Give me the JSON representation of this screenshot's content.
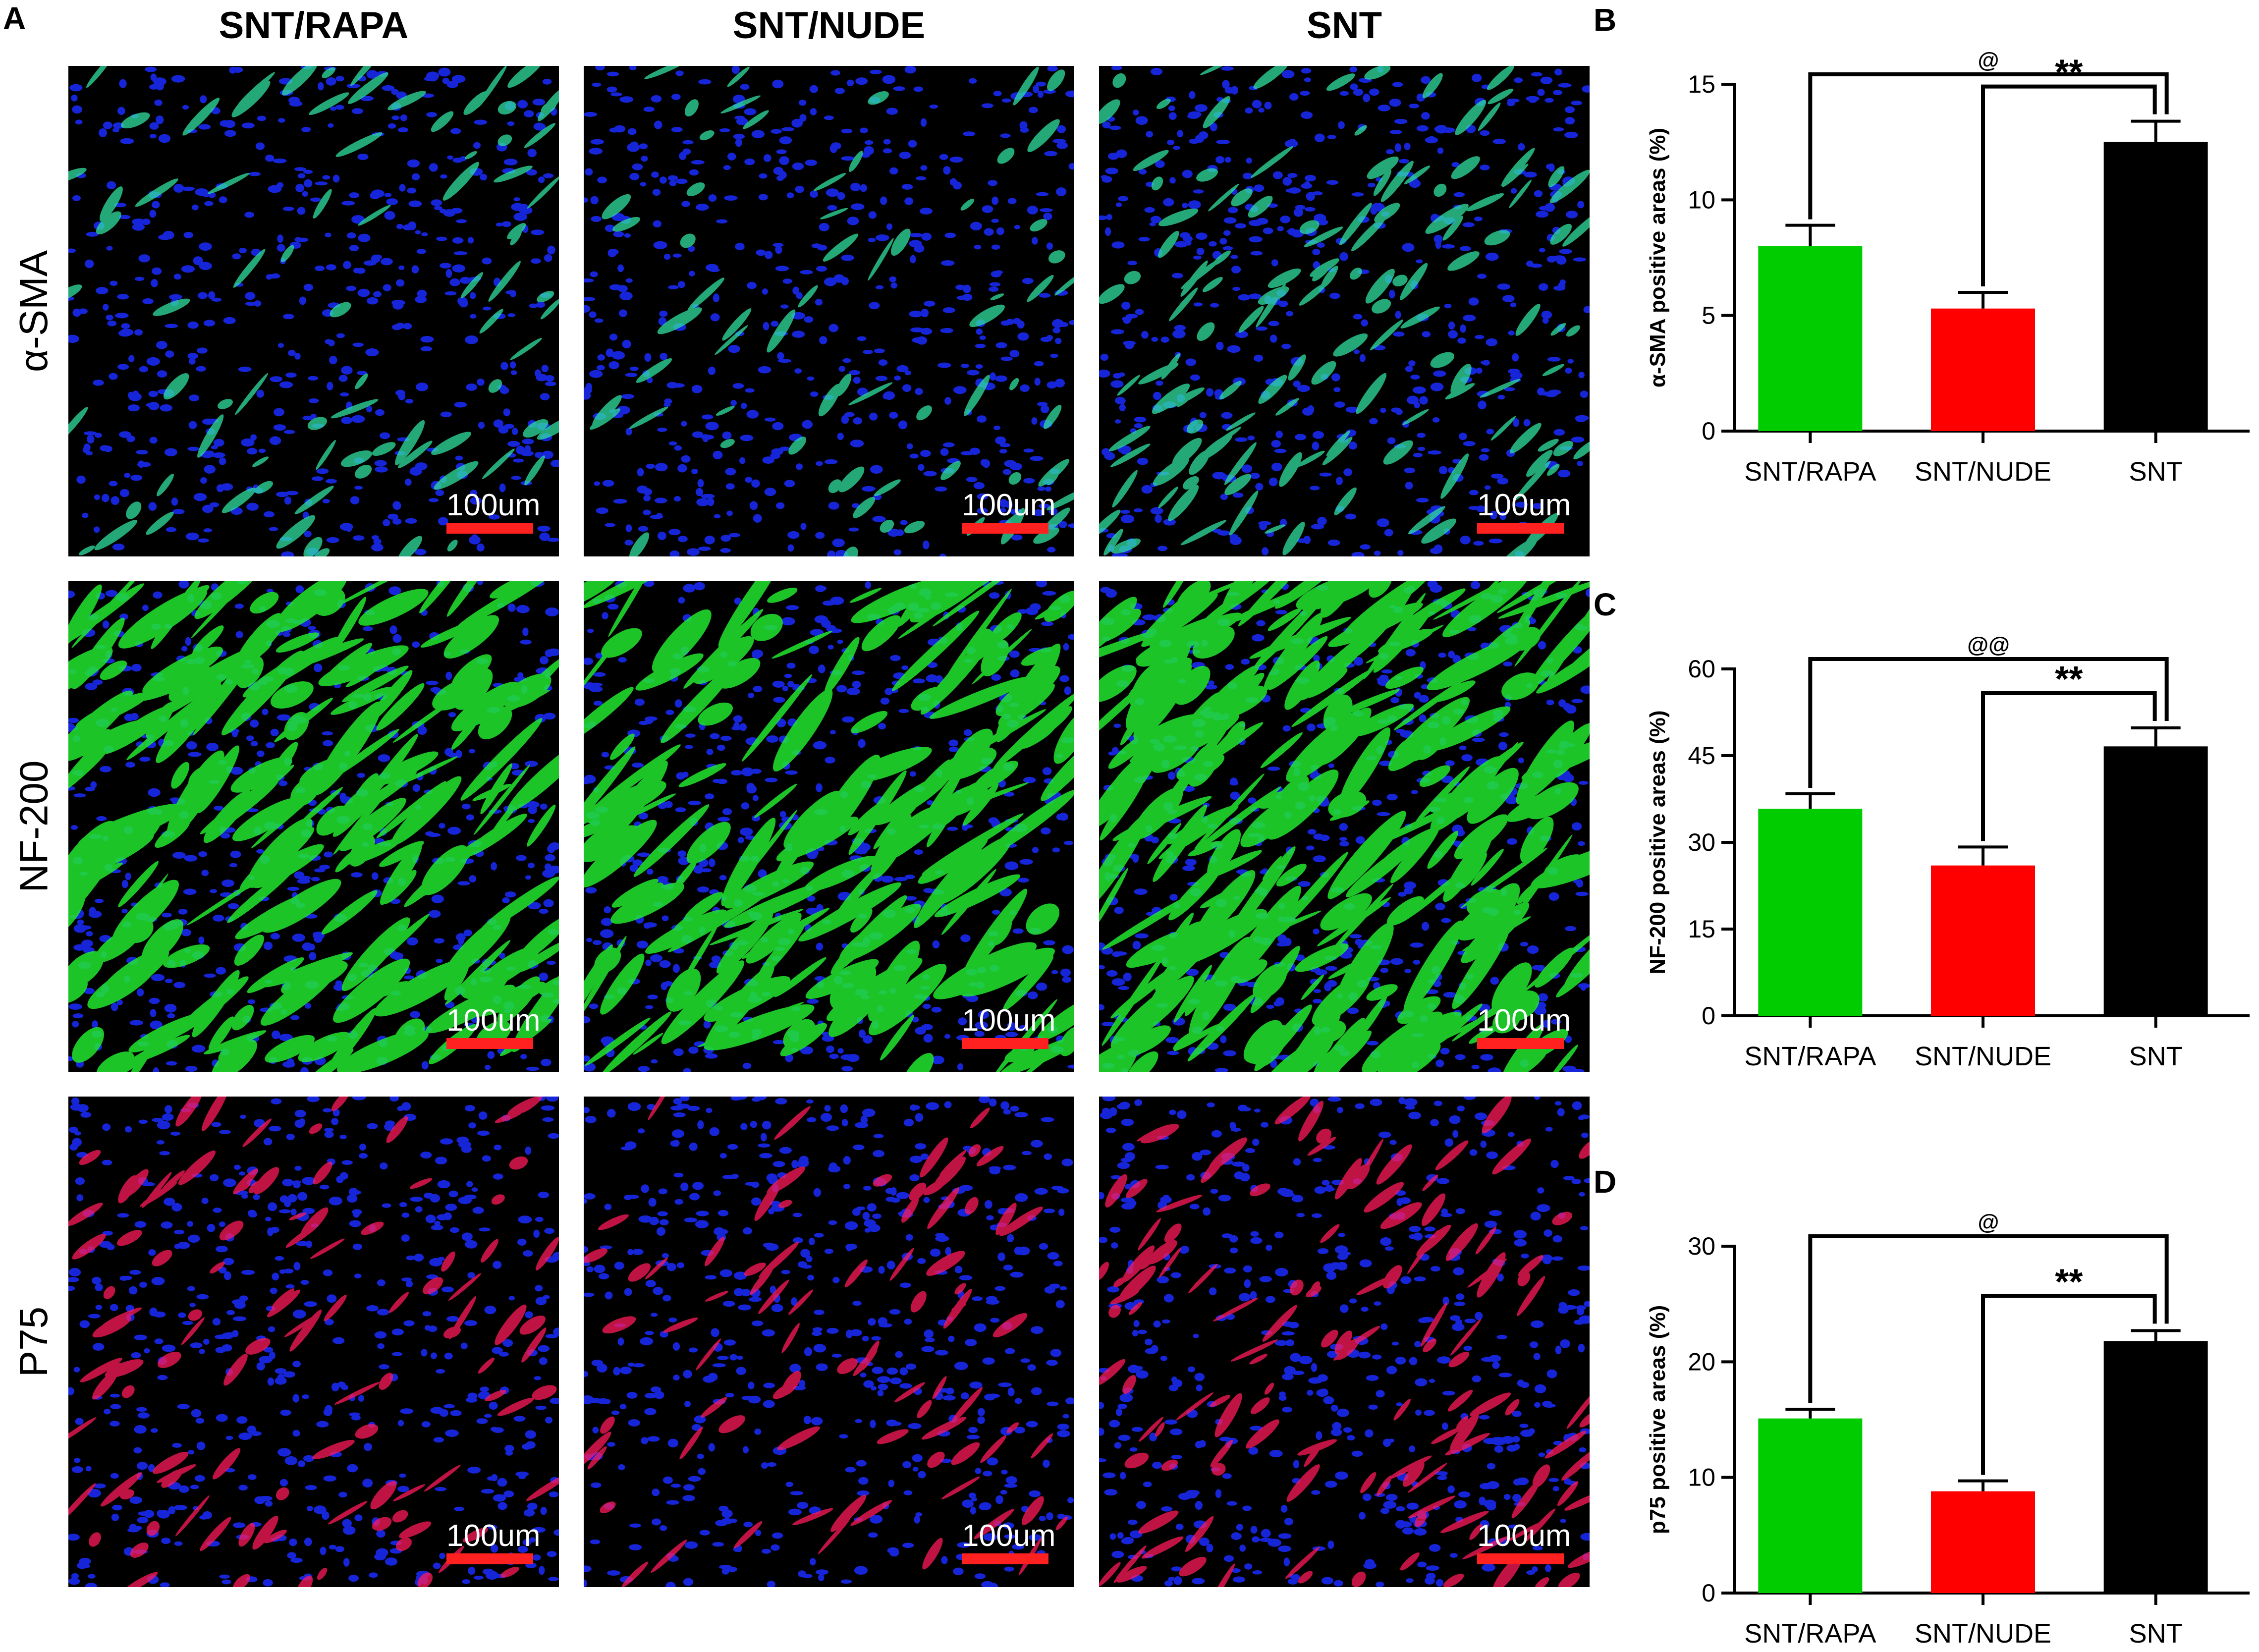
{
  "panel_a": {
    "letter": "A",
    "columns": [
      "SNT/RAPA",
      "SNT/NUDE",
      "SNT"
    ],
    "rows": [
      {
        "marker": "α-SMA",
        "tone": "#30e0a0",
        "density": [
          0.18,
          0.12,
          0.42
        ]
      },
      {
        "marker": "NF-200",
        "tone": "#22e830",
        "density": [
          0.7,
          0.55,
          0.9
        ]
      },
      {
        "marker": "P75",
        "tone": "#ff1a5a",
        "density": [
          0.3,
          0.18,
          0.4
        ]
      }
    ],
    "scale_bar": "100um",
    "colors": {
      "nuclei": "#1c2cff",
      "scale_bar": "#ff2020"
    }
  },
  "chart_data": [
    {
      "letter": "B",
      "type": "bar",
      "categories": [
        "SNT/RAPA",
        "SNT/NUDE",
        "SNT"
      ],
      "values": [
        8.0,
        5.3,
        12.5
      ],
      "errors": [
        0.9,
        0.7,
        0.9
      ],
      "ylabel": "α-SMA positive areas (%)",
      "ylim": [
        0,
        15
      ],
      "yticks": [
        "0",
        "5",
        "10",
        "15"
      ],
      "colors": [
        "#00cc00",
        "#ff0000",
        "#000000"
      ],
      "annotations": [
        {
          "from": 0,
          "to": 2,
          "label": "@"
        },
        {
          "from": 1,
          "to": 2,
          "label": "**"
        }
      ]
    },
    {
      "letter": "C",
      "type": "bar",
      "categories": [
        "SNT/RAPA",
        "SNT/NUDE",
        "SNT"
      ],
      "values": [
        35.8,
        26.0,
        46.6
      ],
      "errors": [
        2.6,
        3.2,
        3.2
      ],
      "ylabel": "NF-200 positive areas (%)",
      "ylim": [
        0,
        60
      ],
      "yticks": [
        "0",
        "15",
        "30",
        "45",
        "60"
      ],
      "colors": [
        "#00cc00",
        "#ff0000",
        "#000000"
      ],
      "annotations": [
        {
          "from": 0,
          "to": 2,
          "label": "@@"
        },
        {
          "from": 1,
          "to": 2,
          "label": "**"
        }
      ]
    },
    {
      "letter": "D",
      "type": "bar",
      "categories": [
        "SNT/RAPA",
        "SNT/NUDE",
        "SNT"
      ],
      "values": [
        15.1,
        8.8,
        21.8
      ],
      "errors": [
        0.8,
        0.9,
        0.9
      ],
      "ylabel": "p75 positive areas (%)",
      "ylim": [
        0,
        30
      ],
      "yticks": [
        "0",
        "10",
        "20",
        "30"
      ],
      "colors": [
        "#00cc00",
        "#ff0000",
        "#000000"
      ],
      "annotations": [
        {
          "from": 0,
          "to": 2,
          "label": "@"
        },
        {
          "from": 1,
          "to": 2,
          "label": "**"
        }
      ]
    }
  ]
}
